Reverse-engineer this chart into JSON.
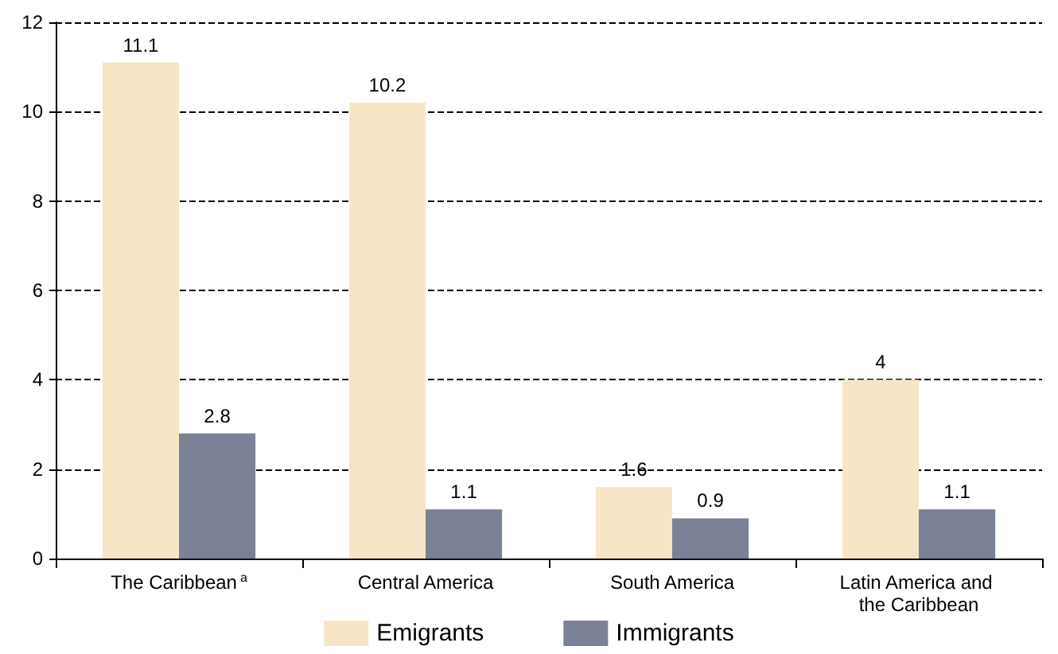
{
  "chart_data": {
    "type": "bar",
    "categories": [
      "The Caribbean$^{a}$",
      "Central America",
      "South America",
      "Latin America and the Caribbean"
    ],
    "series": [
      {
        "name": "Emigrants",
        "color": "#f7e6c6",
        "values": [
          11.1,
          10.2,
          1.6,
          4
        ]
      },
      {
        "name": "Immigrants",
        "color": "#7b8196",
        "values": [
          2.8,
          1.1,
          0.9,
          1.1
        ]
      }
    ],
    "ylim": [
      0,
      12
    ],
    "yticks": [
      0,
      2,
      4,
      6,
      8,
      10,
      12
    ],
    "grid": "y",
    "legend": "bottom",
    "data_labels": true
  }
}
